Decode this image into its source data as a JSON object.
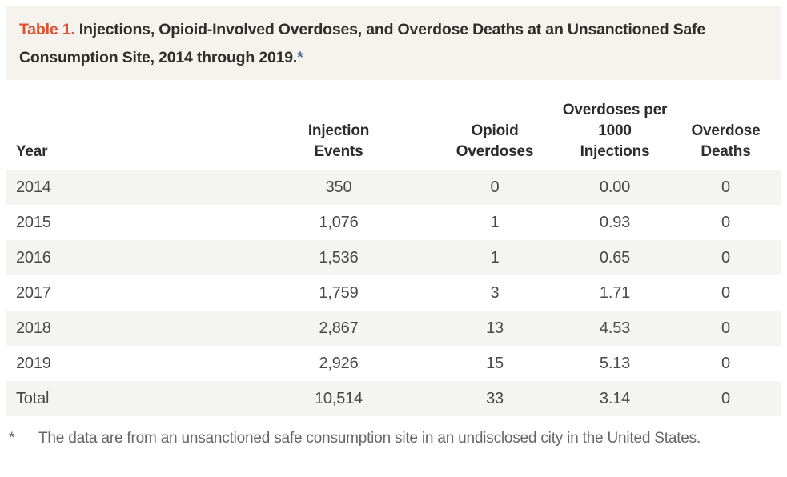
{
  "title": {
    "label": "Table 1.",
    "text": "Injections, Opioid-Involved Overdoses, and Overdose Deaths at an Unsanctioned Safe Consumption Site, 2014 through 2019.",
    "footnote_marker": "*"
  },
  "table": {
    "columns": [
      "Year",
      "Injection\nEvents",
      "Opioid\nOverdoses",
      "Overdoses per\n1000\nInjections",
      "Overdose\nDeaths"
    ],
    "rows": [
      [
        "2014",
        "350",
        "0",
        "0.00",
        "0"
      ],
      [
        "2015",
        "1,076",
        "1",
        "0.93",
        "0"
      ],
      [
        "2016",
        "1,536",
        "1",
        "0.65",
        "0"
      ],
      [
        "2017",
        "1,759",
        "3",
        "1.71",
        "0"
      ],
      [
        "2018",
        "2,867",
        "13",
        "4.53",
        "0"
      ],
      [
        "2019",
        "2,926",
        "15",
        "5.13",
        "0"
      ],
      [
        "Total",
        "10,514",
        "33",
        "3.14",
        "0"
      ]
    ]
  },
  "footnote": {
    "marker": "*",
    "text": "The data are from an unsanctioned safe consumption site in an undisclosed city in the United States."
  },
  "colors": {
    "title_label_orange": "#e0502d",
    "title_text": "#2f2e2c",
    "title_asterisk_blue": "#3f6fa0",
    "title_box_bg": "#f6f2ed",
    "row_stripe_bg": "#f4f4f3",
    "header_text": "#2c2c2c",
    "data_text": "#484848",
    "footnote_text": "#666666",
    "page_bg": "#ffffff"
  },
  "chart_data": {
    "type": "table",
    "title": "Table 1. Injections, Opioid-Involved Overdoses, and Overdose Deaths at an Unsanctioned Safe Consumption Site, 2014 through 2019.",
    "columns": [
      "Year",
      "Injection Events",
      "Opioid Overdoses",
      "Overdoses per 1000 Injections",
      "Overdose Deaths"
    ],
    "rows": [
      [
        "2014",
        350,
        0,
        0.0,
        0
      ],
      [
        "2015",
        1076,
        1,
        0.93,
        0
      ],
      [
        "2016",
        1536,
        1,
        0.65,
        0
      ],
      [
        "2017",
        1759,
        3,
        1.71,
        0
      ],
      [
        "2018",
        2867,
        13,
        4.53,
        0
      ],
      [
        "2019",
        2926,
        15,
        5.13,
        0
      ],
      [
        "Total",
        10514,
        33,
        3.14,
        0
      ]
    ],
    "footnote": "The data are from an unsanctioned safe consumption site in an undisclosed city in the United States."
  }
}
